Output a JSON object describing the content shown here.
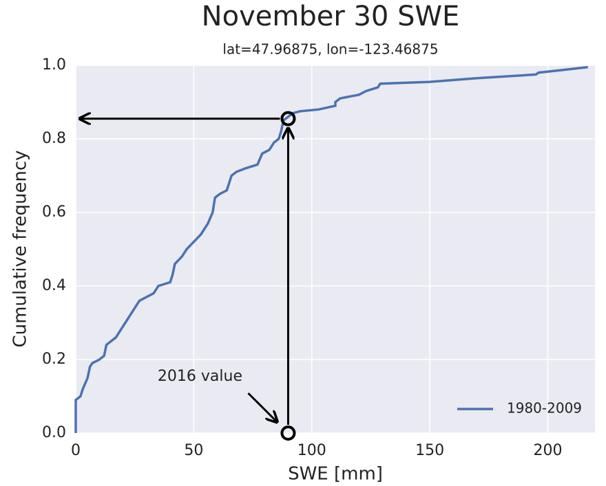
{
  "chart_data": {
    "type": "line",
    "title": "November 30 SWE",
    "subtitle": "lat=47.96875, lon=-123.46875",
    "x_label": "SWE [mm]",
    "y_label": "Cumulative frequency",
    "x": [
      0,
      0,
      2,
      3,
      5,
      6,
      7,
      10,
      12,
      13,
      17,
      19,
      21,
      23,
      25,
      27,
      30,
      33,
      35,
      40,
      41,
      42,
      45,
      47,
      50,
      53,
      56,
      58,
      59,
      61,
      64,
      66,
      68,
      72,
      77,
      79,
      82,
      84,
      86,
      87,
      88,
      90,
      92,
      95,
      103,
      110,
      110,
      112,
      120,
      123,
      128,
      129,
      150,
      170,
      195,
      196,
      210,
      217
    ],
    "series": [
      {
        "name": "1980-2009",
        "color": "#4c72b0",
        "values": [
          0,
          0.09,
          0.1,
          0.12,
          0.15,
          0.18,
          0.19,
          0.2,
          0.21,
          0.24,
          0.26,
          0.28,
          0.3,
          0.32,
          0.34,
          0.36,
          0.37,
          0.38,
          0.4,
          0.41,
          0.43,
          0.46,
          0.48,
          0.5,
          0.52,
          0.54,
          0.57,
          0.6,
          0.64,
          0.65,
          0.66,
          0.7,
          0.71,
          0.72,
          0.73,
          0.76,
          0.77,
          0.79,
          0.8,
          0.82,
          0.85,
          0.86,
          0.87,
          0.875,
          0.88,
          0.89,
          0.9,
          0.91,
          0.92,
          0.93,
          0.94,
          0.95,
          0.955,
          0.965,
          0.975,
          0.98,
          0.99,
          0.995
        ]
      }
    ],
    "xlim": [
      0,
      220
    ],
    "ylim": [
      0,
      1
    ],
    "xticks": [
      0,
      50,
      100,
      150,
      200
    ],
    "yticks": [
      {
        "value": 0,
        "label": "0.0"
      },
      0.2,
      0.4,
      0.6,
      0.8,
      {
        "value": 1,
        "label": "1.0"
      }
    ],
    "grid": true,
    "legend": "lower right",
    "annotation": {
      "text": "2016 value",
      "x": 90,
      "y": 0.855
    }
  }
}
